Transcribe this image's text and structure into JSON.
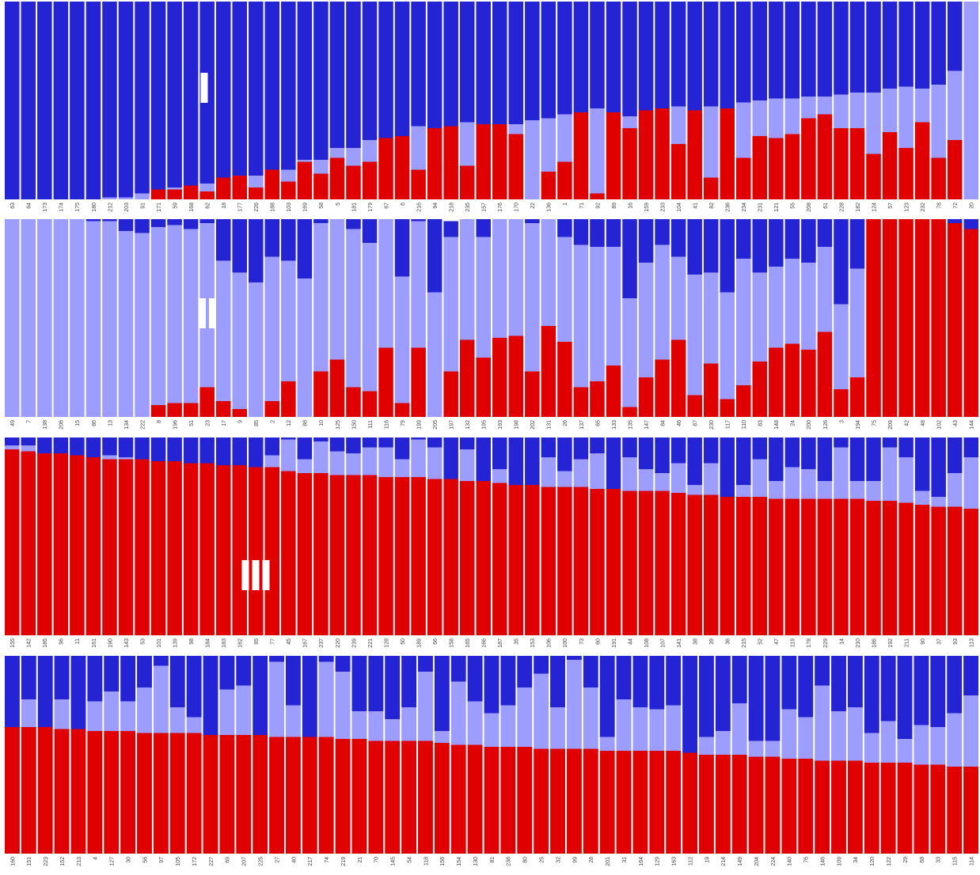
{
  "colors": {
    "A": "#2424d4",
    "B": "#9d9dff",
    "C": "#e00000"
  },
  "chart_data": [
    {
      "type": "stacked-bar",
      "panel_label": "I",
      "stack_order": [
        "C",
        "B",
        "A"
      ],
      "ylim": [
        0,
        1
      ],
      "categories": [
        "63",
        "64",
        "173",
        "174",
        "175",
        "180",
        "212",
        "203",
        "91",
        "171",
        "59",
        "168",
        "62",
        "18",
        "177",
        "226",
        "188",
        "103",
        "169",
        "58",
        "5",
        "181",
        "179",
        "67",
        "6",
        "216",
        "94",
        "218",
        "235",
        "157",
        "176",
        "170",
        "22",
        "136",
        "1",
        "71",
        "92",
        "89",
        "16",
        "159",
        "233",
        "104",
        "41",
        "82",
        "236",
        "234",
        "231",
        "121",
        "55",
        "208",
        "61",
        "228",
        "182",
        "124",
        "57",
        "123",
        "232",
        "78",
        "72",
        "20"
      ],
      "series": [
        {
          "key": "C",
          "values": [
            0,
            0,
            0,
            0,
            0,
            0,
            0,
            0,
            0,
            0.05,
            0.05,
            0.07,
            0.04,
            0.11,
            0.12,
            0.06,
            0.15,
            0.09,
            0.19,
            0.13,
            0.21,
            0.17,
            0.19,
            0.31,
            0.32,
            0.15,
            0.36,
            0.37,
            0.17,
            0.38,
            0.38,
            0.33,
            0,
            0.14,
            0.19,
            0.44,
            0.03,
            0.44,
            0.36,
            0.45,
            0.46,
            0.28,
            0.45,
            0.11,
            0.46,
            0.21,
            0.32,
            0.31,
            0.33,
            0.41,
            0.43,
            0.36,
            0.36,
            0.23,
            0.34,
            0.26,
            0.39,
            0.21,
            0.3,
            0
          ]
        },
        {
          "key": "B",
          "values": [
            0,
            0,
            0,
            0,
            0,
            0,
            0.01,
            0.01,
            0.03,
            0,
            0.01,
            0,
            0.04,
            0,
            0,
            0.06,
            0,
            0.06,
            0.01,
            0.07,
            0.05,
            0.09,
            0.11,
            0,
            0,
            0.22,
            0,
            0,
            0.22,
            0,
            0,
            0.05,
            0.4,
            0.27,
            0.24,
            0,
            0.43,
            0,
            0.06,
            0,
            0,
            0.19,
            0,
            0.36,
            0,
            0.28,
            0.18,
            0.2,
            0.18,
            0.11,
            0.09,
            0.17,
            0.18,
            0.31,
            0.22,
            0.31,
            0.17,
            0.37,
            0.35,
            1.0
          ]
        },
        {
          "key": "A",
          "values": [
            1,
            1,
            1,
            1,
            1,
            1,
            0.99,
            0.99,
            0.97,
            0.95,
            0.94,
            0.93,
            0.92,
            0.89,
            0.88,
            0.88,
            0.85,
            0.85,
            0.8,
            0.8,
            0.74,
            0.74,
            0.7,
            0.69,
            0.68,
            0.63,
            0.64,
            0.63,
            0.61,
            0.62,
            0.62,
            0.62,
            0.6,
            0.59,
            0.57,
            0.56,
            0.54,
            0.56,
            0.58,
            0.55,
            0.54,
            0.53,
            0.55,
            0.53,
            0.54,
            0.51,
            0.5,
            0.49,
            0.49,
            0.48,
            0.48,
            0.47,
            0.46,
            0.46,
            0.44,
            0.43,
            0.44,
            0.42,
            0.35,
            0
          ]
        }
      ]
    },
    {
      "type": "stacked-bar",
      "panel_label": "II",
      "stack_order": [
        "C",
        "B",
        "A"
      ],
      "ylim": [
        0,
        1
      ],
      "categories": [
        "49",
        "7",
        "138",
        "206",
        "15",
        "86",
        "13",
        "134",
        "222",
        "8",
        "196",
        "51",
        "23",
        "17",
        "9",
        "85",
        "2",
        "12",
        "88",
        "10",
        "125",
        "150",
        "111",
        "116",
        "79",
        "199",
        "205",
        "197",
        "132",
        "195",
        "193",
        "198",
        "202",
        "131",
        "26",
        "137",
        "65",
        "133",
        "135",
        "147",
        "84",
        "46",
        "87",
        "230",
        "117",
        "110",
        "83",
        "148",
        "24",
        "200",
        "126",
        "3",
        "194",
        "75",
        "209",
        "42",
        "48",
        "102",
        "43",
        "144"
      ],
      "series": [
        {
          "key": "C",
          "values": [
            0,
            0,
            0,
            0,
            0,
            0,
            0,
            0,
            0,
            0.06,
            0.07,
            0.07,
            0.15,
            0.08,
            0.04,
            0,
            0.08,
            0.18,
            0,
            0.23,
            0.29,
            0.15,
            0.13,
            0.35,
            0.07,
            0.35,
            0,
            0.23,
            0.39,
            0.3,
            0.4,
            0.41,
            0.23,
            0.46,
            0.38,
            0.15,
            0.18,
            0.26,
            0.05,
            0.2,
            0.29,
            0.39,
            0.11,
            0.27,
            0.09,
            0.16,
            0.28,
            0.35,
            0.37,
            0.34,
            0.43,
            0.14,
            0.2,
            1,
            1,
            1,
            1,
            1,
            0.98,
            0.95
          ]
        },
        {
          "key": "B",
          "values": [
            1,
            1,
            1,
            1,
            1,
            0.99,
            0.99,
            0.94,
            0.93,
            0.9,
            0.9,
            0.88,
            0.83,
            0.71,
            0.69,
            0.68,
            0.73,
            0.61,
            0.7,
            0.75,
            0.71,
            0.8,
            0.75,
            0.65,
            0.64,
            0.64,
            0.63,
            0.68,
            0.61,
            0.61,
            0.6,
            0.59,
            0.75,
            0.54,
            0.53,
            0.72,
            0.68,
            0.6,
            0.55,
            0.58,
            0.58,
            0.42,
            0.61,
            0.46,
            0.54,
            0.64,
            0.45,
            0.41,
            0.43,
            0.44,
            0.43,
            0.43,
            0.55,
            0,
            0,
            0,
            0,
            0,
            0,
            0
          ]
        },
        {
          "key": "A",
          "values": [
            0,
            0,
            0,
            0,
            0,
            0.01,
            0.01,
            0.06,
            0.07,
            0.04,
            0.03,
            0.05,
            0.02,
            0.21,
            0.27,
            0.32,
            0.19,
            0.21,
            0.3,
            0.02,
            0,
            0.05,
            0.12,
            0,
            0.29,
            0.01,
            0.37,
            0.08,
            0,
            0.09,
            0,
            0,
            0.02,
            0,
            0.09,
            0.13,
            0.14,
            0.14,
            0.4,
            0.22,
            0.13,
            0.19,
            0.28,
            0.27,
            0.37,
            0.2,
            0.27,
            0.24,
            0.2,
            0.22,
            0.14,
            0.43,
            0.25,
            0,
            0,
            0,
            0,
            0,
            0.02,
            0.05
          ]
        }
      ]
    },
    {
      "type": "stacked-bar",
      "panel_label": "III",
      "stack_order": [
        "C",
        "B",
        "A"
      ],
      "ylim": [
        0,
        1
      ],
      "categories": [
        "155",
        "142",
        "185",
        "96",
        "11",
        "161",
        "190",
        "143",
        "53",
        "101",
        "139",
        "98",
        "184",
        "183",
        "162",
        "95",
        "77",
        "45",
        "167",
        "237",
        "220",
        "239",
        "221",
        "128",
        "50",
        "189",
        "66",
        "158",
        "165",
        "166",
        "187",
        "35",
        "153",
        "106",
        "100",
        "73",
        "60",
        "191",
        "44",
        "108",
        "107",
        "141",
        "38",
        "39",
        "36",
        "215",
        "52",
        "47",
        "119",
        "178",
        "229",
        "14",
        "210",
        "186",
        "192",
        "211",
        "90",
        "37",
        "93",
        "113"
      ],
      "series": [
        {
          "key": "C",
          "values": [
            0.94,
            0.93,
            0.92,
            0.92,
            0.91,
            0.9,
            0.89,
            0.89,
            0.89,
            0.88,
            0.88,
            0.87,
            0.87,
            0.86,
            0.86,
            0.85,
            0.85,
            0.83,
            0.82,
            0.82,
            0.81,
            0.81,
            0.81,
            0.8,
            0.8,
            0.8,
            0.79,
            0.79,
            0.78,
            0.78,
            0.77,
            0.76,
            0.76,
            0.75,
            0.75,
            0.75,
            0.74,
            0.74,
            0.73,
            0.73,
            0.73,
            0.72,
            0.71,
            0.71,
            0.7,
            0.7,
            0.7,
            0.69,
            0.69,
            0.69,
            0.69,
            0.69,
            0.69,
            0.68,
            0.68,
            0.67,
            0.66,
            0.65,
            0.65,
            0.64
          ]
        },
        {
          "key": "B",
          "values": [
            0.02,
            0.03,
            0,
            0,
            0,
            0,
            0.02,
            0.01,
            0,
            0,
            0,
            0,
            0,
            0,
            0,
            0,
            0.06,
            0.16,
            0.07,
            0.16,
            0.12,
            0.11,
            0.14,
            0.15,
            0.09,
            0.19,
            0.16,
            0,
            0.16,
            0,
            0.07,
            0,
            0,
            0.15,
            0.08,
            0.14,
            0.18,
            0,
            0.17,
            0.11,
            0.09,
            0.15,
            0.05,
            0.16,
            0,
            0.06,
            0.19,
            0.09,
            0.16,
            0.15,
            0.09,
            0.26,
            0.09,
            0.1,
            0.27,
            0.23,
            0.07,
            0.05,
            0.17,
            0.26
          ]
        },
        {
          "key": "A",
          "values": [
            0.04,
            0.04,
            0.08,
            0.08,
            0.09,
            0.1,
            0.09,
            0.1,
            0.11,
            0.12,
            0.12,
            0.13,
            0.13,
            0.14,
            0.14,
            0.15,
            0.09,
            0.01,
            0.11,
            0.02,
            0.07,
            0.08,
            0.05,
            0.05,
            0.11,
            0.01,
            0.05,
            0.21,
            0.06,
            0.22,
            0.16,
            0.24,
            0.24,
            0.1,
            0.17,
            0.11,
            0.08,
            0.26,
            0.1,
            0.16,
            0.18,
            0.13,
            0.24,
            0.13,
            0.3,
            0.24,
            0.11,
            0.22,
            0.15,
            0.16,
            0.22,
            0.05,
            0.22,
            0.22,
            0.05,
            0.1,
            0.27,
            0.3,
            0.18,
            0.1
          ]
        }
      ]
    },
    {
      "type": "stacked-bar",
      "panel_label": "",
      "stack_order": [
        "C",
        "B",
        "A"
      ],
      "ylim": [
        0,
        1
      ],
      "categories": [
        "160",
        "151",
        "223",
        "152",
        "213",
        "4",
        "127",
        "30",
        "56",
        "97",
        "105",
        "172",
        "227",
        "69",
        "207",
        "225",
        "27",
        "40",
        "217",
        "74",
        "219",
        "21",
        "70",
        "145",
        "54",
        "118",
        "156",
        "154",
        "130",
        "81",
        "238",
        "80",
        "25",
        "32",
        "99",
        "28",
        "201",
        "31",
        "164",
        "129",
        "163",
        "112",
        "19",
        "214",
        "149",
        "204",
        "224",
        "140",
        "76",
        "146",
        "109",
        "34",
        "120",
        "122",
        "29",
        "68",
        "33",
        "115",
        "114"
      ],
      "series": [
        {
          "key": "C",
          "values": [
            0.64,
            0.64,
            0.64,
            0.63,
            0.63,
            0.62,
            0.62,
            0.62,
            0.61,
            0.61,
            0.61,
            0.61,
            0.6,
            0.6,
            0.6,
            0.6,
            0.59,
            0.59,
            0.59,
            0.59,
            0.58,
            0.58,
            0.57,
            0.57,
            0.57,
            0.57,
            0.56,
            0.55,
            0.55,
            0.54,
            0.54,
            0.54,
            0.53,
            0.53,
            0.53,
            0.53,
            0.52,
            0.52,
            0.52,
            0.52,
            0.52,
            0.51,
            0.5,
            0.5,
            0.5,
            0.49,
            0.49,
            0.48,
            0.48,
            0.47,
            0.47,
            0.47,
            0.46,
            0.46,
            0.46,
            0.45,
            0.45,
            0.44,
            0.44
          ]
        },
        {
          "key": "B",
          "values": [
            0,
            0.14,
            0,
            0.15,
            0,
            0.15,
            0.2,
            0.15,
            0.23,
            0.34,
            0.13,
            0.08,
            0,
            0.23,
            0.25,
            0,
            0.38,
            0.16,
            0,
            0.38,
            0.34,
            0.14,
            0.15,
            0.11,
            0.17,
            0.35,
            0.06,
            0.32,
            0.22,
            0.17,
            0.21,
            0.3,
            0.38,
            0.21,
            0.45,
            0.31,
            0.07,
            0.26,
            0.22,
            0.21,
            0.23,
            0,
            0.09,
            0.12,
            0.26,
            0.08,
            0.08,
            0.25,
            0.21,
            0.38,
            0.25,
            0.27,
            0.15,
            0.21,
            0.12,
            0.2,
            0.19,
            0.27,
            0.36
          ]
        },
        {
          "key": "A",
          "values": [
            0.36,
            0.22,
            0.36,
            0.22,
            0.37,
            0.23,
            0.18,
            0.23,
            0.16,
            0.05,
            0.26,
            0.31,
            0.4,
            0.17,
            0.15,
            0.4,
            0.03,
            0.25,
            0.41,
            0.03,
            0.08,
            0.28,
            0.28,
            0.32,
            0.26,
            0.08,
            0.38,
            0.13,
            0.23,
            0.29,
            0.25,
            0.16,
            0.09,
            0.26,
            0.02,
            0.16,
            0.41,
            0.22,
            0.26,
            0.27,
            0.25,
            0.49,
            0.41,
            0.38,
            0.24,
            0.43,
            0.43,
            0.27,
            0.31,
            0.15,
            0.28,
            0.26,
            0.39,
            0.33,
            0.42,
            0.35,
            0.36,
            0.29,
            0.2
          ]
        }
      ]
    }
  ]
}
